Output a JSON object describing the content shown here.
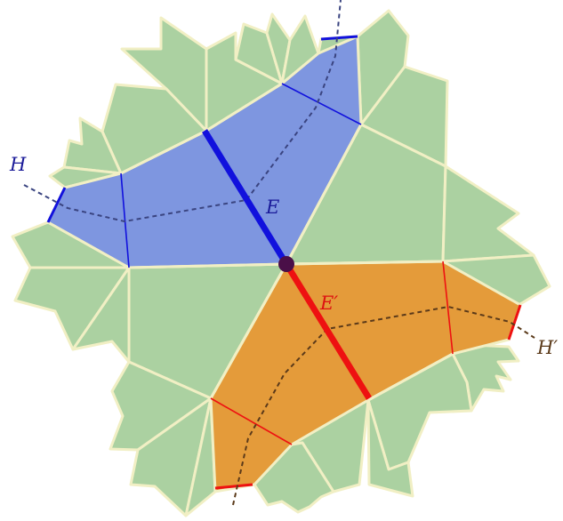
{
  "labels": {
    "H": "H",
    "E": "E",
    "E_prime": "E′",
    "H_prime": "H′"
  },
  "colors": {
    "background": "#ffffff",
    "tile_fill": "#abd1a1",
    "tile_stroke": "#f1efc4",
    "blue_region": "#7e96e0",
    "orange_region": "#e49b3a",
    "blue_edge": "#1111dd",
    "red_edge": "#ee1111",
    "label_blue": "#1a1a99",
    "label_red": "#dd1111",
    "label_brown": "#5b3a1a",
    "hyperplane_H": "#3a4480",
    "hyperplane_H_prime": "#5b3a1a",
    "vertex": "#4a0f48"
  }
}
